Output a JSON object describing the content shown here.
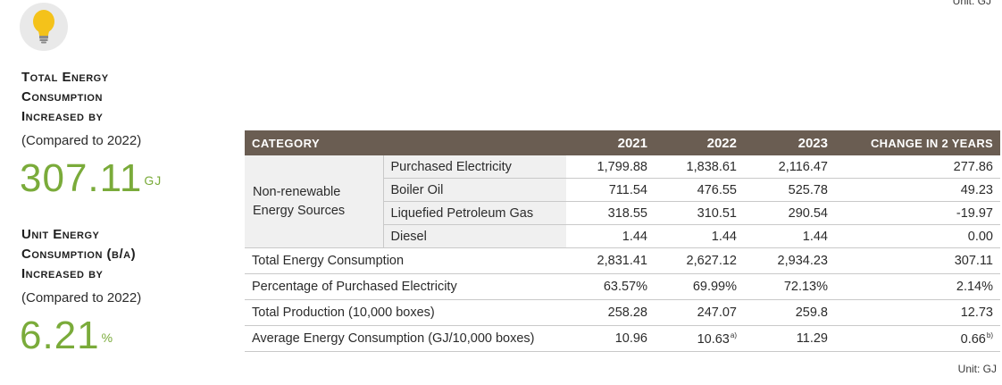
{
  "top_unit": "Unit: GJ",
  "kpi1": {
    "title_lines": [
      "Total Energy",
      "Consumption",
      "Increased by"
    ],
    "subtitle": "(Compared to 2022)",
    "value": "307.11",
    "unit": "GJ"
  },
  "kpi2": {
    "title_lines": [
      "Unit Energy",
      "Consumption (b/a)",
      "Increased by"
    ],
    "subtitle": "(Compared to 2022)",
    "value": "6.21",
    "unit": "%"
  },
  "colors": {
    "accent_green": "#7aab3a",
    "header_brown": "#6a5d52",
    "group_bg": "#f0f0f0",
    "bulb": "#f4c21a"
  },
  "icons": {
    "kpi_icon": "lightbulb-icon"
  },
  "table": {
    "headers": {
      "category": "CATEGORY",
      "y2021": "2021",
      "y2022": "2022",
      "y2023": "2023",
      "change": "CHANGE IN 2 YEARS"
    },
    "group_label_lines": [
      "Non-renewable",
      "Energy Sources"
    ],
    "sub_rows": [
      {
        "label": "Purchased Electricity",
        "y2021": "1,799.88",
        "y2022": "1,838.61",
        "y2023": "2,116.47",
        "change": "277.86"
      },
      {
        "label": "Boiler Oil",
        "y2021": "711.54",
        "y2022": "476.55",
        "y2023": "525.78",
        "change": "49.23"
      },
      {
        "label": "Liquefied Petroleum Gas",
        "y2021": "318.55",
        "y2022": "310.51",
        "y2023": "290.54",
        "change": "-19.97"
      },
      {
        "label": "Diesel",
        "y2021": "1.44",
        "y2022": "1.44",
        "y2023": "1.44",
        "change": "0.00"
      }
    ],
    "rows": [
      {
        "label": "Total Energy Consumption",
        "y2021": "2,831.41",
        "y2022": "2,627.12",
        "y2023": "2,934.23",
        "change": "307.11"
      },
      {
        "label": "Percentage of Purchased Electricity",
        "y2021": "63.57%",
        "y2022": "69.99%",
        "y2023": "72.13%",
        "change": "2.14%"
      },
      {
        "label": "Total Production (10,000 boxes)",
        "y2021": "258.28",
        "y2022": "247.07",
        "y2023": "259.8",
        "change": "12.73"
      },
      {
        "label": "Average Energy Consumption (GJ/10,000 boxes)",
        "y2021": "10.96",
        "y2022": "10.63",
        "y2022_note": "a)",
        "y2023": "11.29",
        "change": "0.66",
        "change_note": "b)"
      }
    ]
  },
  "bottom_unit": "Unit: GJ"
}
